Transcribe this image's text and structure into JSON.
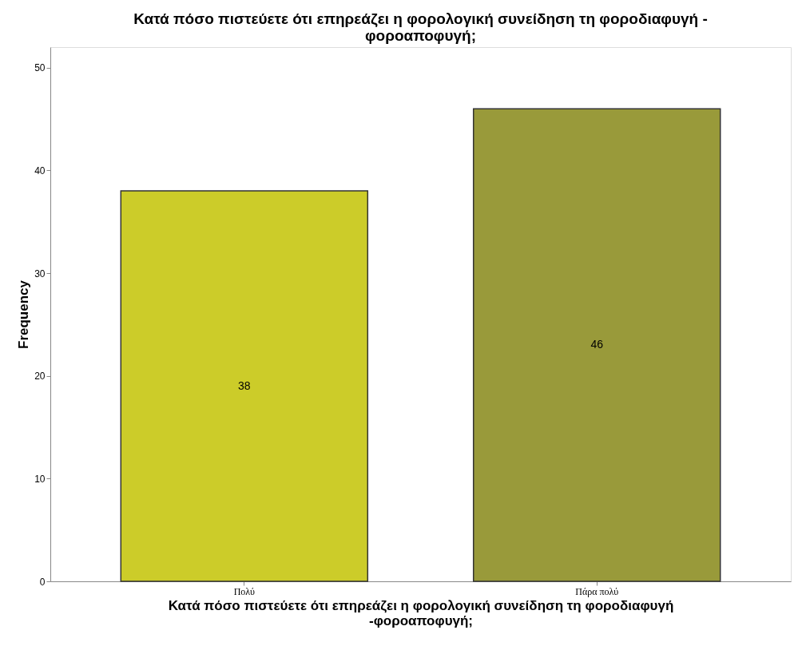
{
  "chart_data": {
    "type": "bar",
    "title": "Κατά πόσο πιστεύετε ότι επηρεάζει η φορολογική συνείδηση τη φοροδιαφυγή - φοροαποφυγή;",
    "xlabel": "Κατά πόσο πιστεύετε ότι επηρεάζει η φορολογική συνείδηση τη φοροδιαφυγή -φοροαποφυγή;",
    "ylabel": "Frequency",
    "categories": [
      "Πολύ",
      "Πάρα πολύ"
    ],
    "values": [
      38,
      46
    ],
    "colors": [
      "#cccc29",
      "#999a3a"
    ],
    "ylim": [
      0,
      52
    ],
    "yticks": [
      0,
      10,
      20,
      30,
      40,
      50
    ],
    "data_labels": true,
    "grid": false,
    "legend": false
  }
}
